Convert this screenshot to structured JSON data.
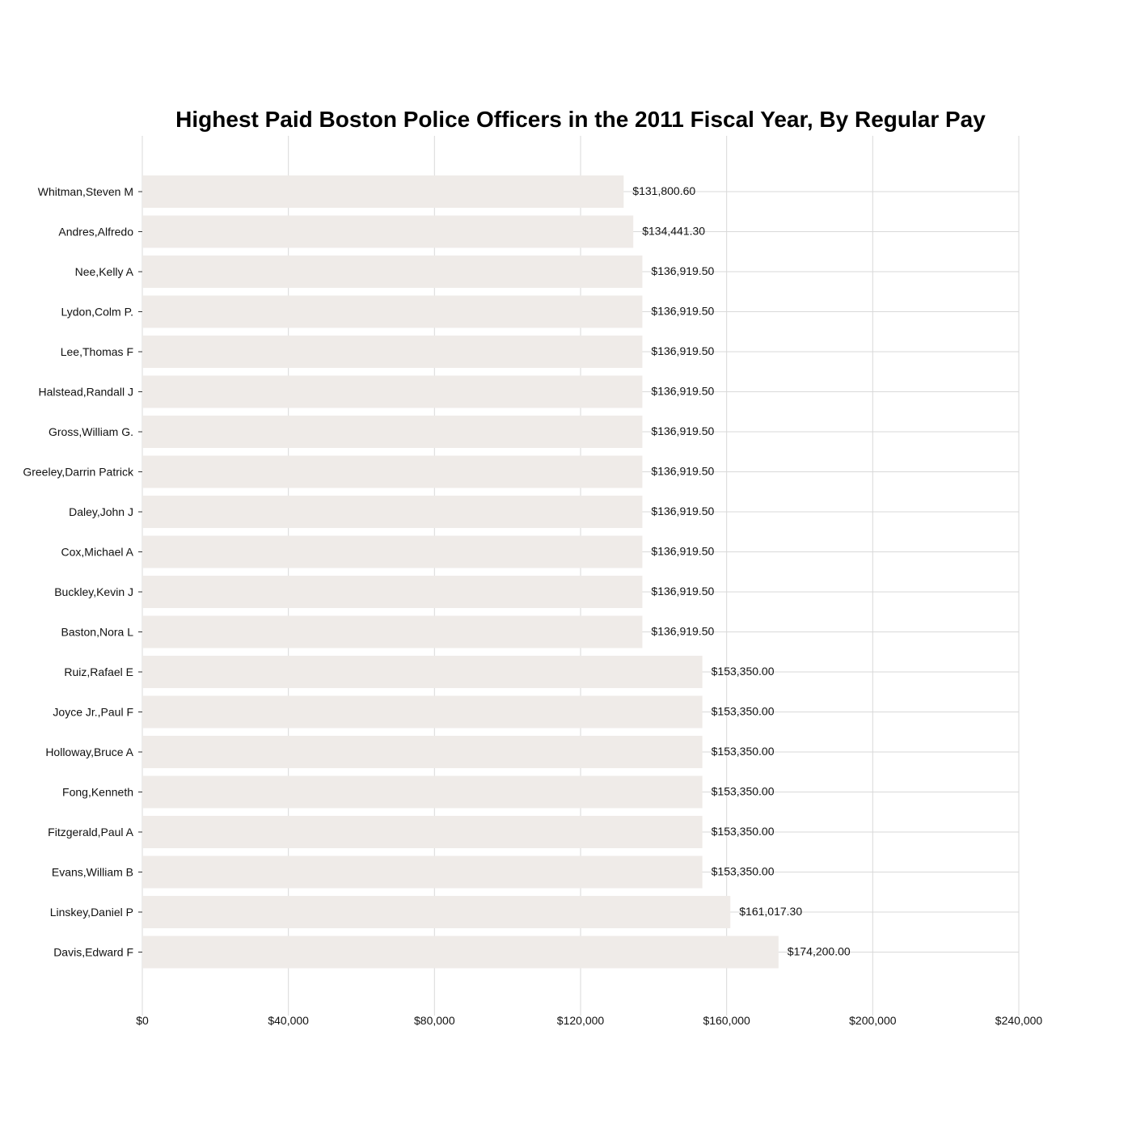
{
  "chart_data": {
    "type": "bar",
    "orientation": "horizontal",
    "title": "Highest Paid Boston Police Officers in the 2011 Fiscal Year, By Regular Pay",
    "xlabel": "",
    "ylabel": "",
    "xlim": [
      0,
      240000
    ],
    "x_ticks": [
      {
        "value": 0,
        "label": "$0"
      },
      {
        "value": 40000,
        "label": "$40,000"
      },
      {
        "value": 80000,
        "label": "$80,000"
      },
      {
        "value": 120000,
        "label": "$120,000"
      },
      {
        "value": 160000,
        "label": "$160,000"
      },
      {
        "value": 200000,
        "label": "$200,000"
      },
      {
        "value": 240000,
        "label": "$240,000"
      }
    ],
    "grid": true,
    "legend": "none",
    "colors": {
      "bar": "#efebe8",
      "grid": "#d9d9d9",
      "text": "#111111"
    },
    "categories": [
      "Whitman,Steven M",
      "Andres,Alfredo",
      "Nee,Kelly A",
      "Lydon,Colm P.",
      "Lee,Thomas F",
      "Halstead,Randall J",
      "Gross,William G.",
      "Greeley,Darrin Patrick",
      "Daley,John J",
      "Cox,Michael A",
      "Buckley,Kevin J",
      "Baston,Nora L",
      "Ruiz,Rafael E",
      "Joyce Jr.,Paul F",
      "Holloway,Bruce A",
      "Fong,Kenneth",
      "Fitzgerald,Paul A",
      "Evans,William B",
      "Linskey,Daniel P",
      "Davis,Edward F"
    ],
    "values": [
      131800.6,
      134441.3,
      136919.5,
      136919.5,
      136919.5,
      136919.5,
      136919.5,
      136919.5,
      136919.5,
      136919.5,
      136919.5,
      136919.5,
      153350.0,
      153350.0,
      153350.0,
      153350.0,
      153350.0,
      153350.0,
      161017.3,
      174200.0
    ],
    "value_labels": [
      "$131,800.60",
      "$134,441.30",
      "$136,919.50",
      "$136,919.50",
      "$136,919.50",
      "$136,919.50",
      "$136,919.50",
      "$136,919.50",
      "$136,919.50",
      "$136,919.50",
      "$136,919.50",
      "$136,919.50",
      "$153,350.00",
      "$153,350.00",
      "$153,350.00",
      "$153,350.00",
      "$153,350.00",
      "$153,350.00",
      "$161,017.30",
      "$174,200.00"
    ]
  }
}
